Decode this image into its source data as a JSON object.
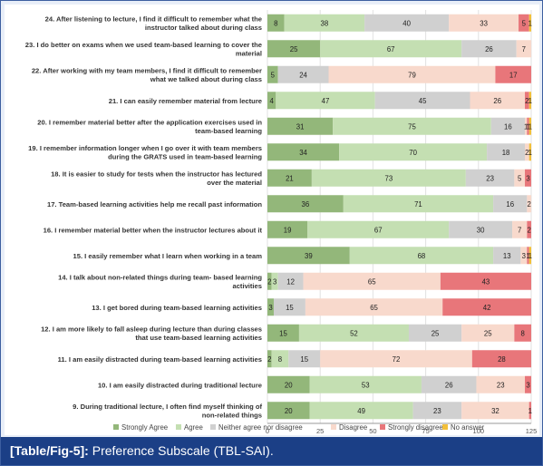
{
  "caption": {
    "label": "[Table/Fig-5]:",
    "text": " Preference Subscale (TBL-SAI)."
  },
  "colors": {
    "Strongly Agree": "#93b77a",
    "Agree": "#c4dfb2",
    "Neither agree nor disagree": "#d0d0d0",
    "Disagree": "#f8d9cc",
    "Strongly disagree": "#e8767a",
    "No answer": "#f2bf3a"
  },
  "chart_data": {
    "type": "bar",
    "orientation": "horizontal",
    "stacked": true,
    "xlim": [
      0,
      125
    ],
    "xticks": [
      0,
      25,
      50,
      75,
      100,
      125
    ],
    "legend_position": "bottom",
    "categories": [
      "24. After listening to lecture, I find it difficult to remember what the instructor talked about during class",
      "23. I do better on exams when we used team-based learning to cover the material",
      "22. After working with my team members, I find it difficult to remember what we talked about during class",
      "21. I can easily remember material from lecture",
      "20. I remember material better after the application exercises used in team-based learning",
      "19. I remember information longer when I go over it with team members during the GRATS used in team-based learning",
      "18. It is easier to study for tests when the instructor has lectured over the material",
      "17. Team-based learning activities help me recall past information",
      "16. I remember material better when the instructor lectures about it",
      "15. I easily remember what I learn when working in a team",
      "14. I talk about non-related things during team- based learning activities",
      "13. I get bored during team-based learning activities",
      "12. I am more likely to fall asleep during lecture than during classes that use team-based learning activities",
      "11. I am easily distracted during team-based learning activities",
      "10. I am easily distracted during traditional lecture",
      "9. During traditional lecture, I often find myself thinking of non-related things"
    ],
    "series": [
      {
        "name": "Strongly Agree",
        "values": [
          8,
          25,
          5,
          4,
          31,
          34,
          21,
          36,
          19,
          39,
          2,
          3,
          15,
          2,
          20,
          20
        ]
      },
      {
        "name": "Agree",
        "values": [
          38,
          67,
          0,
          47,
          75,
          70,
          73,
          71,
          67,
          68,
          3,
          0,
          52,
          8,
          53,
          49
        ]
      },
      {
        "name": "Neither agree nor disagree",
        "values": [
          40,
          26,
          24,
          45,
          16,
          18,
          23,
          16,
          30,
          13,
          12,
          15,
          25,
          15,
          26,
          23
        ]
      },
      {
        "name": "Disagree",
        "values": [
          33,
          7,
          79,
          26,
          1,
          2,
          5,
          2,
          7,
          3,
          65,
          65,
          25,
          72,
          23,
          32
        ]
      },
      {
        "name": "Strongly disagree",
        "values": [
          5,
          0,
          17,
          2,
          1,
          0,
          3,
          0,
          2,
          1,
          43,
          42,
          8,
          28,
          3,
          1
        ]
      },
      {
        "name": "No answer",
        "values": [
          1,
          0,
          0,
          1,
          1,
          1,
          0,
          0,
          0,
          1,
          0,
          0,
          0,
          0,
          0,
          0
        ]
      }
    ]
  }
}
